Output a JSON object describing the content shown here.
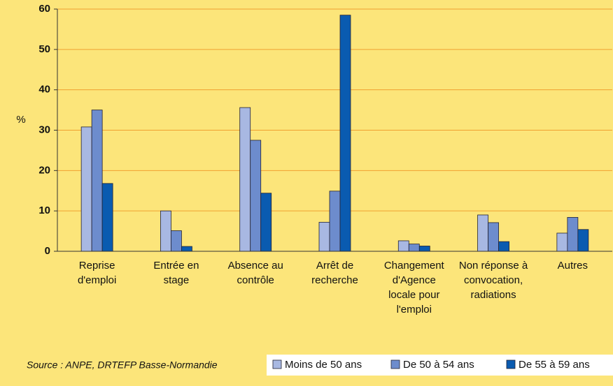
{
  "chart_data": {
    "type": "bar",
    "categories": [
      "Reprise d'emploi",
      "Entrée en stage",
      "Absence au contrôle",
      "Arrêt de recherche",
      "Changement d'Agence locale pour l'emploi",
      "Non réponse à convocation, radiations",
      "Autres"
    ],
    "series": [
      {
        "name": "Moins de 50 ans",
        "color": "#a8b8e2",
        "values": [
          30.8,
          10,
          35.6,
          7.2,
          2.6,
          9,
          4.5
        ]
      },
      {
        "name": "De 50 à 54 ans",
        "color": "#6d8ccd",
        "values": [
          35,
          5.1,
          27.5,
          14.9,
          1.8,
          7.1,
          8.4
        ]
      },
      {
        "name": "De 55 à 59 ans",
        "color": "#0a5bb0",
        "values": [
          16.8,
          1.2,
          14.4,
          58.5,
          1.3,
          2.4,
          5.4
        ]
      }
    ],
    "ylabel": "%",
    "ylim": [
      0,
      60
    ],
    "yticks": [
      0,
      10,
      20,
      30,
      40,
      50,
      60
    ],
    "grid": true,
    "source": "Source : ANPE, DRTEFP Basse-Normandie"
  }
}
